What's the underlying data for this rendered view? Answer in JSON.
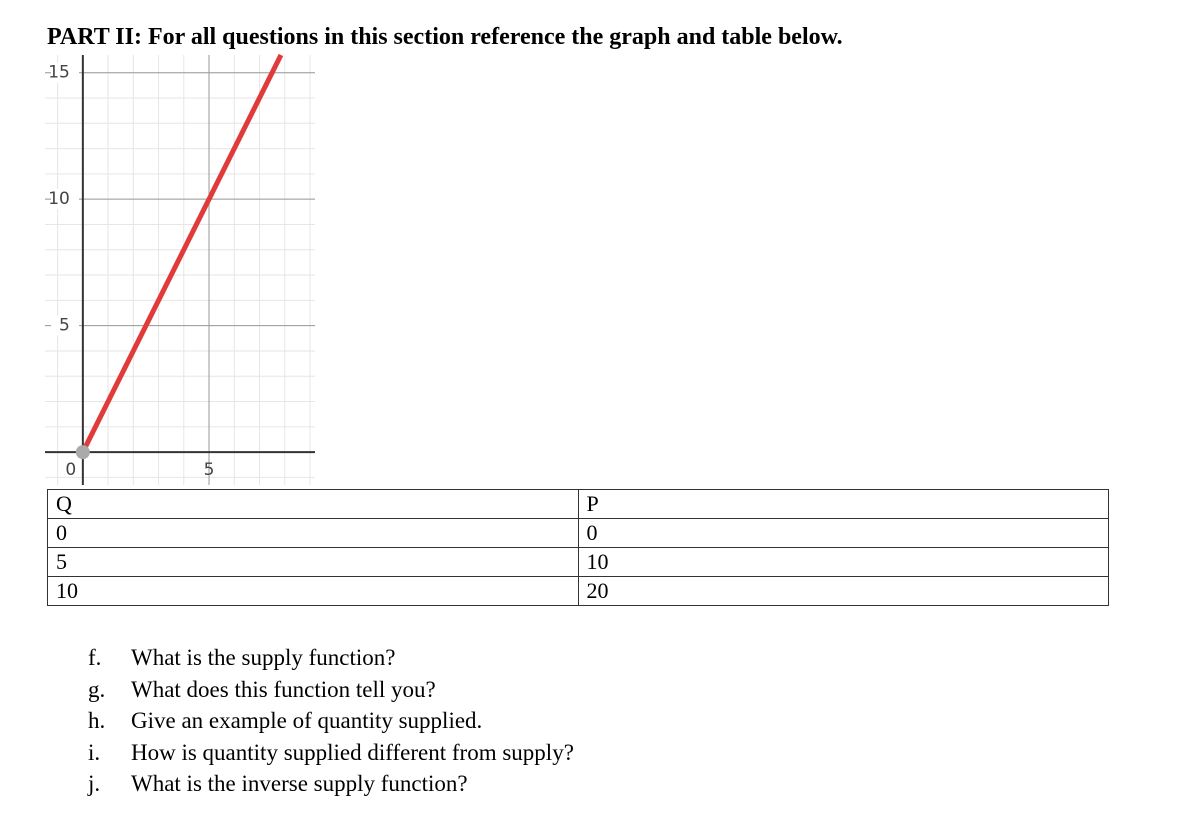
{
  "header": {
    "title": "PART II: For all questions in this section reference the graph and table below."
  },
  "chart_data": {
    "type": "line",
    "x": [
      0,
      7.85
    ],
    "values": [
      0,
      15.7
    ],
    "color": "#e03a3a",
    "marker": {
      "x": 0,
      "y": 0,
      "color": "#aaaaaa"
    },
    "xlim": [
      -1.5,
      9.2
    ],
    "ylim": [
      -1.3,
      15.7
    ],
    "xticks": [
      0,
      5
    ],
    "yticks": [
      5,
      10,
      15
    ],
    "grid": true,
    "minor_grid_step": 1
  },
  "table": {
    "header": [
      "Q",
      "P"
    ],
    "rows": [
      [
        "0",
        "0"
      ],
      [
        "5",
        "10"
      ],
      [
        "10",
        "20"
      ]
    ]
  },
  "questions": [
    {
      "letter": "f.",
      "text": "What is the supply function?"
    },
    {
      "letter": "g.",
      "text": "What does this function tell you?"
    },
    {
      "letter": "h.",
      "text": "Give an example of quantity supplied."
    },
    {
      "letter": "i.",
      "text": "How is quantity supplied different from supply?"
    },
    {
      "letter": "j.",
      "text": "What is the inverse supply function?"
    }
  ]
}
